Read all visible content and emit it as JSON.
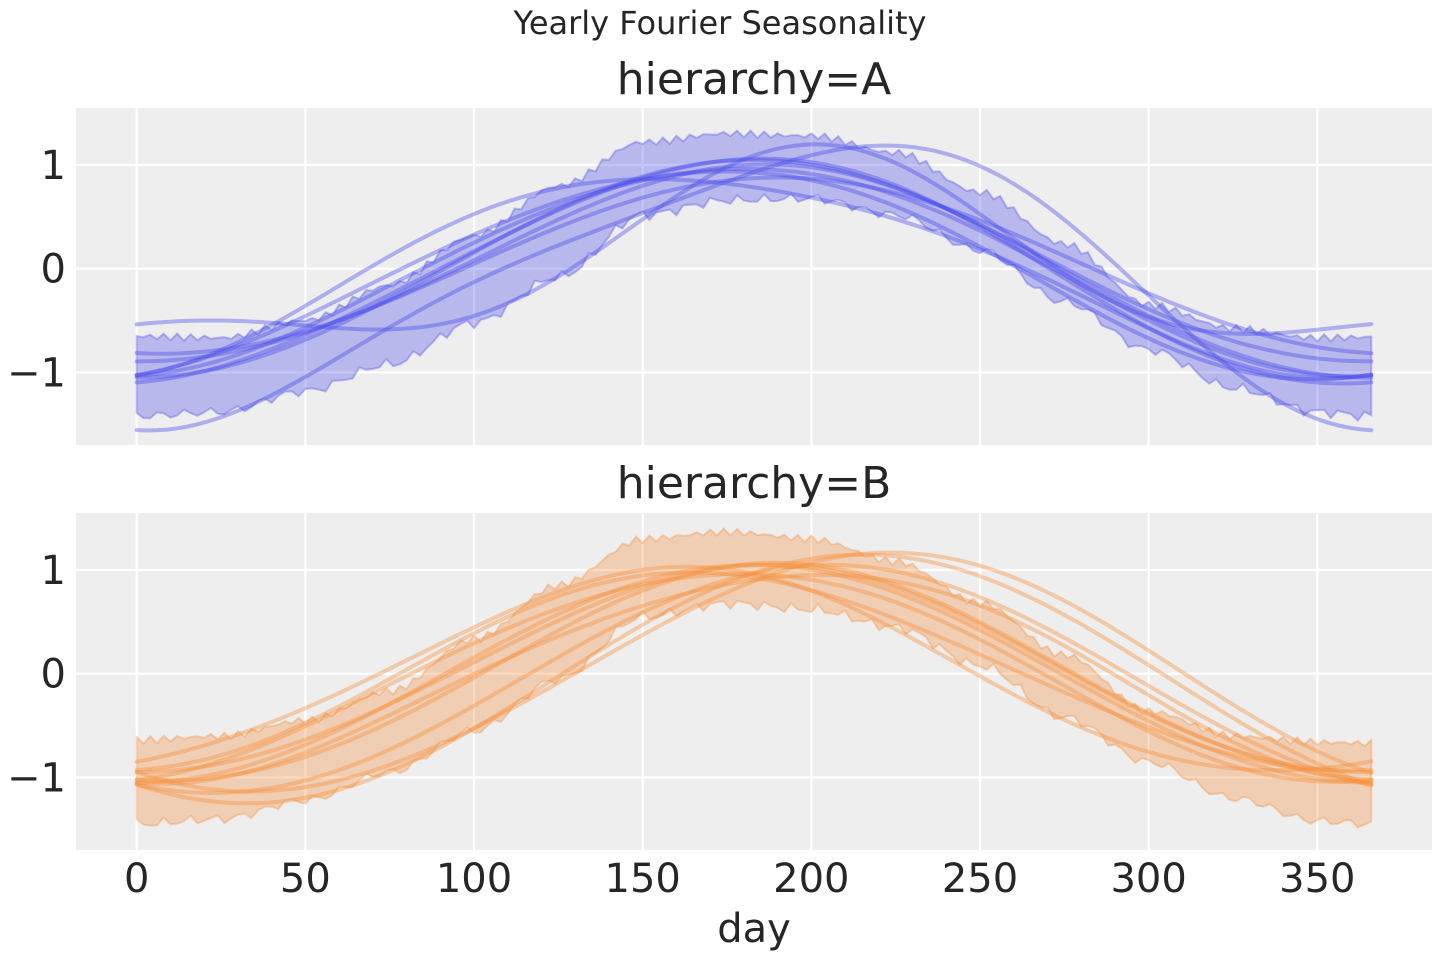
{
  "figure": {
    "suptitle": "Yearly Fourier Seasonality"
  },
  "colors": {
    "A": "#4b4dea",
    "B": "#f5903c",
    "panel": "#eeeeee",
    "grid": "#ffffff"
  },
  "chart_data": [
    {
      "type": "line",
      "title": "hierarchy=A",
      "xlabel": "",
      "ylabel": "",
      "xlim": [
        -18,
        384
      ],
      "ylim": [
        -1.7,
        1.55
      ],
      "xticks": [
        0,
        50,
        100,
        150,
        200,
        250,
        300,
        350
      ],
      "xticklabels": [
        "0",
        "50",
        "100",
        "150",
        "200",
        "250",
        "300",
        "350"
      ],
      "xticklabels_visible": false,
      "yticks": [
        -1,
        0,
        1
      ],
      "yticklabels": [
        "−1",
        "0",
        "1"
      ],
      "grid": true,
      "band": {
        "x": [
          0,
          25,
          50,
          75,
          100,
          125,
          150,
          175,
          200,
          225,
          250,
          275,
          300,
          325,
          350,
          366
        ],
        "lower": [
          -1.42,
          -1.38,
          -1.18,
          -0.92,
          -0.52,
          -0.08,
          0.52,
          0.66,
          0.68,
          0.52,
          0.18,
          -0.32,
          -0.78,
          -1.15,
          -1.38,
          -1.42
        ],
        "upper": [
          -0.65,
          -0.65,
          -0.48,
          -0.16,
          0.3,
          0.78,
          1.22,
          1.32,
          1.3,
          1.12,
          0.72,
          0.22,
          -0.35,
          -0.56,
          -0.65,
          -0.65
        ]
      },
      "series": [
        {
          "amplitude": 1.05,
          "phase_day": 182.5,
          "offset": 0.0,
          "h2": 0.0,
          "phase2_day": 0
        },
        {
          "amplitude": 1.0,
          "phase_day": 178,
          "offset": 0.0,
          "h2": 0.04,
          "phase2_day": 30
        },
        {
          "amplitude": 0.95,
          "phase_day": 185,
          "offset": 0.02,
          "h2": -0.04,
          "phase2_day": 60
        },
        {
          "amplitude": 1.0,
          "phase_day": 170,
          "offset": -0.03,
          "h2": 0.05,
          "phase2_day": 10
        },
        {
          "amplitude": 0.85,
          "phase_day": 190,
          "offset": 0.03,
          "h2": 0.0,
          "phase2_day": 0
        },
        {
          "amplitude": 1.08,
          "phase_day": 180,
          "offset": -0.02,
          "h2": -0.05,
          "phase2_day": 90
        },
        {
          "amplitude": 0.85,
          "phase_day": 200,
          "offset": 0.0,
          "h2": -0.35,
          "phase2_day": 65
        },
        {
          "amplitude": 1.3,
          "phase_day": 200,
          "offset": -0.1,
          "h2": 0.25,
          "phase2_day": 30
        },
        {
          "amplitude": 0.95,
          "phase_day": 165,
          "offset": 0.0,
          "h2": 0.12,
          "phase2_day": 45
        }
      ]
    },
    {
      "type": "line",
      "title": "hierarchy=B",
      "xlabel": "day",
      "ylabel": "",
      "xlim": [
        -18,
        384
      ],
      "ylim": [
        -1.7,
        1.55
      ],
      "xticks": [
        0,
        50,
        100,
        150,
        200,
        250,
        300,
        350
      ],
      "xticklabels": [
        "0",
        "50",
        "100",
        "150",
        "200",
        "250",
        "300",
        "350"
      ],
      "xticklabels_visible": true,
      "yticks": [
        -1,
        0,
        1
      ],
      "yticklabels": [
        "−1",
        "0",
        "1"
      ],
      "grid": true,
      "band": {
        "x": [
          0,
          25,
          50,
          75,
          100,
          125,
          150,
          175,
          200,
          225,
          250,
          275,
          300,
          325,
          350,
          366
        ],
        "lower": [
          -1.45,
          -1.4,
          -1.22,
          -0.95,
          -0.55,
          -0.05,
          0.55,
          0.68,
          0.62,
          0.45,
          0.08,
          -0.42,
          -0.85,
          -1.2,
          -1.42,
          -1.45
        ],
        "upper": [
          -0.66,
          -0.62,
          -0.45,
          -0.15,
          0.35,
          0.85,
          1.28,
          1.35,
          1.3,
          1.1,
          0.7,
          0.18,
          -0.38,
          -0.62,
          -0.66,
          -0.66
        ]
      },
      "series": [
        {
          "amplitude": 1.05,
          "phase_day": 182.5,
          "offset": 0.0,
          "h2": 0.0,
          "phase2_day": 0
        },
        {
          "amplitude": 1.0,
          "phase_day": 175,
          "offset": 0.0,
          "h2": 0.05,
          "phase2_day": 20
        },
        {
          "amplitude": 1.05,
          "phase_day": 190,
          "offset": -0.02,
          "h2": -0.04,
          "phase2_day": 50
        },
        {
          "amplitude": 0.95,
          "phase_day": 170,
          "offset": 0.02,
          "h2": 0.05,
          "phase2_day": 80
        },
        {
          "amplitude": 1.1,
          "phase_day": 205,
          "offset": -0.05,
          "h2": 0.0,
          "phase2_day": 0
        },
        {
          "amplitude": 1.0,
          "phase_day": 195,
          "offset": 0.0,
          "h2": 0.08,
          "phase2_day": 35
        },
        {
          "amplitude": 0.98,
          "phase_day": 160,
          "offset": 0.0,
          "h2": -0.06,
          "phase2_day": 40
        },
        {
          "amplitude": 1.15,
          "phase_day": 220,
          "offset": 0.0,
          "h2": 0.04,
          "phase2_day": 25
        },
        {
          "amplitude": 1.2,
          "phase_day": 215,
          "offset": -0.05,
          "h2": 0.0,
          "phase2_day": 0
        },
        {
          "amplitude": 1.0,
          "phase_day": 185,
          "offset": 0.03,
          "h2": -0.03,
          "phase2_day": 70
        }
      ]
    }
  ]
}
